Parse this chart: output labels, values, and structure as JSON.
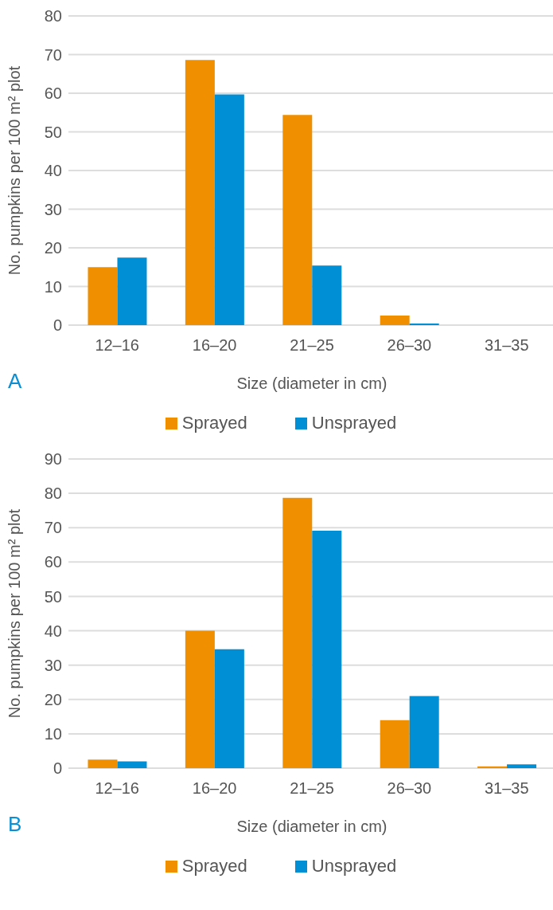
{
  "chart_data": [
    {
      "type": "bar",
      "categories": [
        "12–16",
        "16–20",
        "21–25",
        "26–30",
        "31–35"
      ],
      "xlabel": "Size (diameter in cm)",
      "ylabel": "No. pumpkins per 100 m² plot",
      "ylim": [
        0,
        80
      ],
      "yticks": [
        0,
        10,
        20,
        30,
        40,
        50,
        60,
        70,
        80
      ],
      "grid": "y",
      "legend": "bottom",
      "annotations": [
        "A"
      ],
      "series": [
        {
          "name": "Sprayed",
          "color": "#f09000",
          "values": [
            15.0,
            68.6,
            54.4,
            2.5,
            null
          ]
        },
        {
          "name": "Unsprayed",
          "color": "#008fd5",
          "values": [
            17.5,
            59.7,
            15.4,
            0.4,
            null
          ]
        }
      ]
    },
    {
      "type": "bar",
      "categories": [
        "12–16",
        "16–20",
        "21–25",
        "26–30",
        "31–35"
      ],
      "xlabel": "Size (diameter in cm)",
      "ylabel": "No. pumpkins per 100 m² plot",
      "ylim": [
        0,
        90
      ],
      "yticks": [
        0,
        10,
        20,
        30,
        40,
        50,
        60,
        70,
        80,
        90
      ],
      "grid": "y",
      "legend": "bottom",
      "annotations": [
        "B"
      ],
      "series": [
        {
          "name": "Sprayed",
          "color": "#f09000",
          "values": [
            2.5,
            40.0,
            78.7,
            14.0,
            0.5
          ]
        },
        {
          "name": "Unsprayed",
          "color": "#008fd5",
          "values": [
            2.0,
            34.6,
            69.1,
            21.0,
            1.1
          ]
        }
      ]
    }
  ]
}
